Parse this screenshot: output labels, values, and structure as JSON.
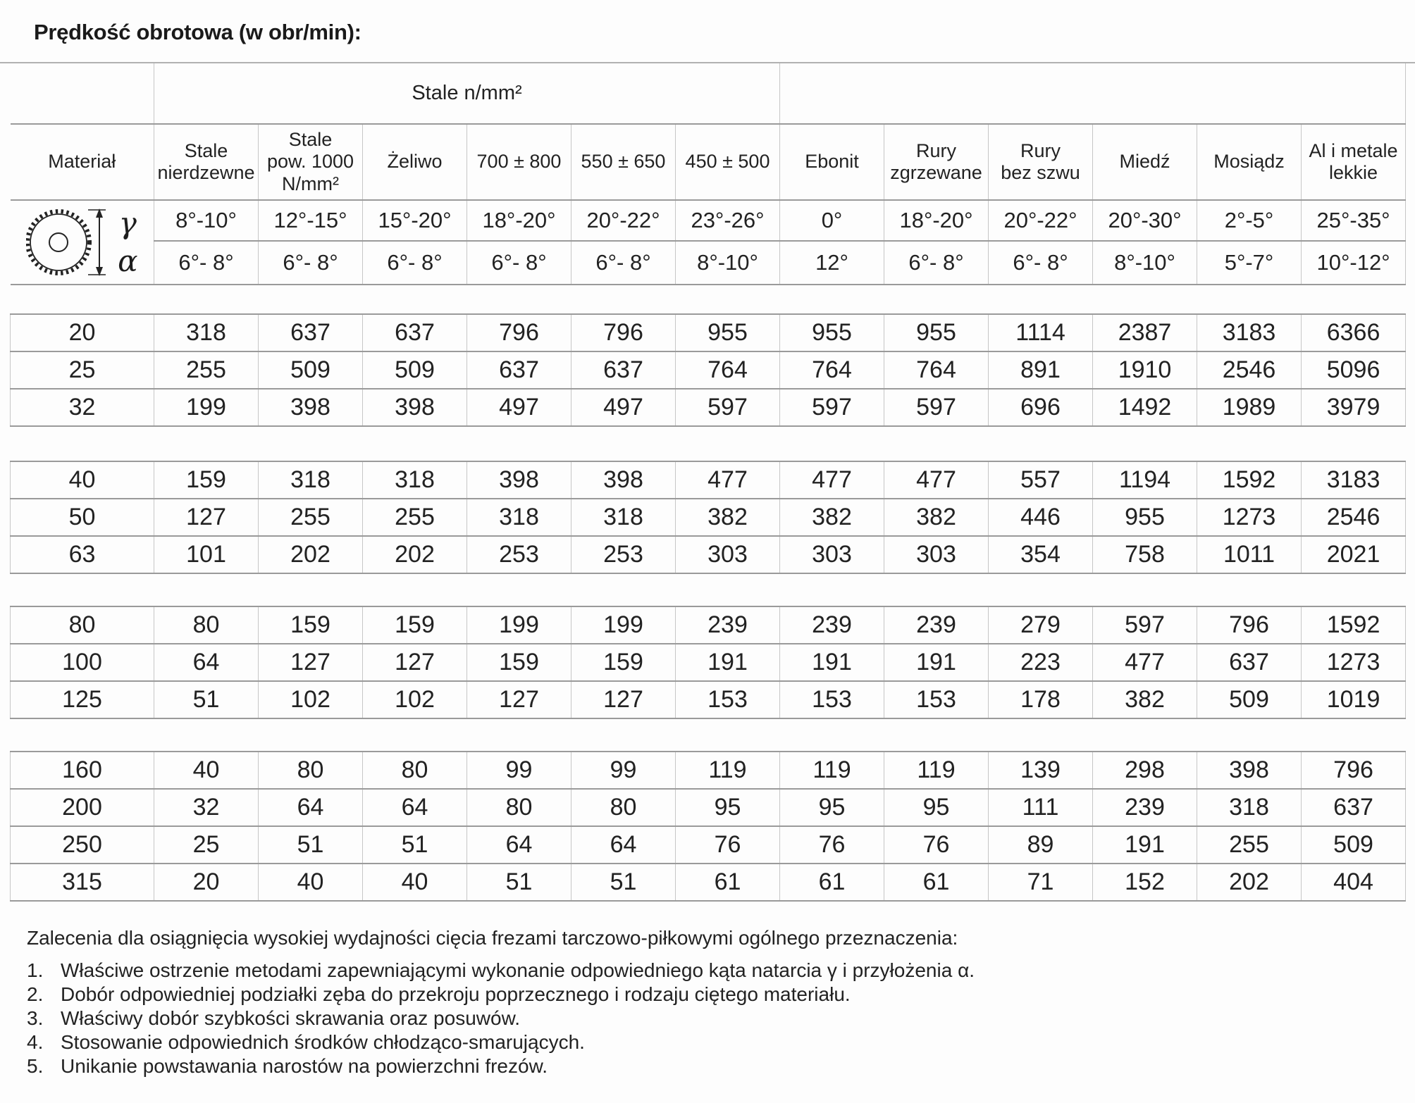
{
  "page_title": "Prędkość obrotowa (w obr/min):",
  "table": {
    "steel_group_label": "Stale n/mm²",
    "columns": [
      "Materiał",
      "Stale\nnierdzewne",
      "Stale\npow. 1000\nN/mm²",
      "Żeliwo",
      "700 ± 800",
      "550 ± 650",
      "450 ± 500",
      "Ebonit",
      "Rury\nzgrzewane",
      "Rury\nbez szwu",
      "Miedź",
      "Mosiądz",
      "Al i metale\nlekkie"
    ],
    "angles": {
      "gamma_label": "γ",
      "alpha_label": "α",
      "gamma": [
        "8°-10°",
        "12°-15°",
        "15°-20°",
        "18°-20°",
        "20°-22°",
        "23°-26°",
        "0°",
        "18°-20°",
        "20°-22°",
        "20°-30°",
        "2°-5°",
        "25°-35°"
      ],
      "alpha": [
        "6°- 8°",
        "6°- 8°",
        "6°- 8°",
        "6°- 8°",
        "6°- 8°",
        "8°-10°",
        "12°",
        "6°- 8°",
        "6°- 8°",
        "8°-10°",
        "5°-7°",
        "10°-12°"
      ]
    },
    "icon": "saw-blade-icon",
    "groups": [
      {
        "rows": [
          {
            "d": "20",
            "values": [
              318,
              637,
              637,
              796,
              796,
              955,
              955,
              955,
              1114,
              2387,
              3183,
              6366
            ]
          },
          {
            "d": "25",
            "values": [
              255,
              509,
              509,
              637,
              637,
              764,
              764,
              764,
              891,
              1910,
              2546,
              5096
            ]
          },
          {
            "d": "32",
            "values": [
              199,
              398,
              398,
              497,
              497,
              597,
              597,
              597,
              696,
              1492,
              1989,
              3979
            ]
          }
        ]
      },
      {
        "rows": [
          {
            "d": "40",
            "values": [
              159,
              318,
              318,
              398,
              398,
              477,
              477,
              477,
              557,
              1194,
              1592,
              3183
            ]
          },
          {
            "d": "50",
            "values": [
              127,
              255,
              255,
              318,
              318,
              382,
              382,
              382,
              446,
              955,
              1273,
              2546
            ]
          },
          {
            "d": "63",
            "values": [
              101,
              202,
              202,
              253,
              253,
              303,
              303,
              303,
              354,
              758,
              1011,
              2021
            ]
          }
        ]
      },
      {
        "rows": [
          {
            "d": "80",
            "values": [
              80,
              159,
              159,
              199,
              199,
              239,
              239,
              239,
              279,
              597,
              796,
              1592
            ]
          },
          {
            "d": "100",
            "values": [
              64,
              127,
              127,
              159,
              159,
              191,
              191,
              191,
              223,
              477,
              637,
              1273
            ]
          },
          {
            "d": "125",
            "values": [
              51,
              102,
              102,
              127,
              127,
              153,
              153,
              153,
              178,
              382,
              509,
              1019
            ]
          }
        ]
      },
      {
        "rows": [
          {
            "d": "160",
            "values": [
              40,
              80,
              80,
              99,
              99,
              119,
              119,
              119,
              139,
              298,
              398,
              796
            ]
          },
          {
            "d": "200",
            "values": [
              32,
              64,
              64,
              80,
              80,
              95,
              95,
              95,
              111,
              239,
              318,
              637
            ]
          },
          {
            "d": "250",
            "values": [
              25,
              51,
              51,
              64,
              64,
              76,
              76,
              76,
              89,
              191,
              255,
              509
            ]
          },
          {
            "d": "315",
            "values": [
              20,
              40,
              40,
              51,
              51,
              61,
              61,
              61,
              71,
              152,
              202,
              404
            ]
          }
        ]
      }
    ]
  },
  "footer": {
    "heading": "Zalecenia dla osiągnięcia wysokiej wydajności cięcia frezami tarczowo-piłkowymi ogólnego przeznaczenia:",
    "items": [
      {
        "num": "1.",
        "text": "Właściwe ostrzenie metodami zapewniającymi wykonanie odpowiedniego kąta natarcia γ i przyłożenia α."
      },
      {
        "num": "2.",
        "text": "Dobór odpowiedniej podziałki zęba do przekroju poprzecznego i rodzaju ciętego materiału."
      },
      {
        "num": "3.",
        "text": "Właściwy dobór szybkości skrawania oraz posuwów."
      },
      {
        "num": "4.",
        "text": "Stosowanie odpowiednich środków chłodząco-smarujących."
      },
      {
        "num": "5.",
        "text": "Unikanie powstawania narostów na powierzchni frezów."
      }
    ]
  }
}
